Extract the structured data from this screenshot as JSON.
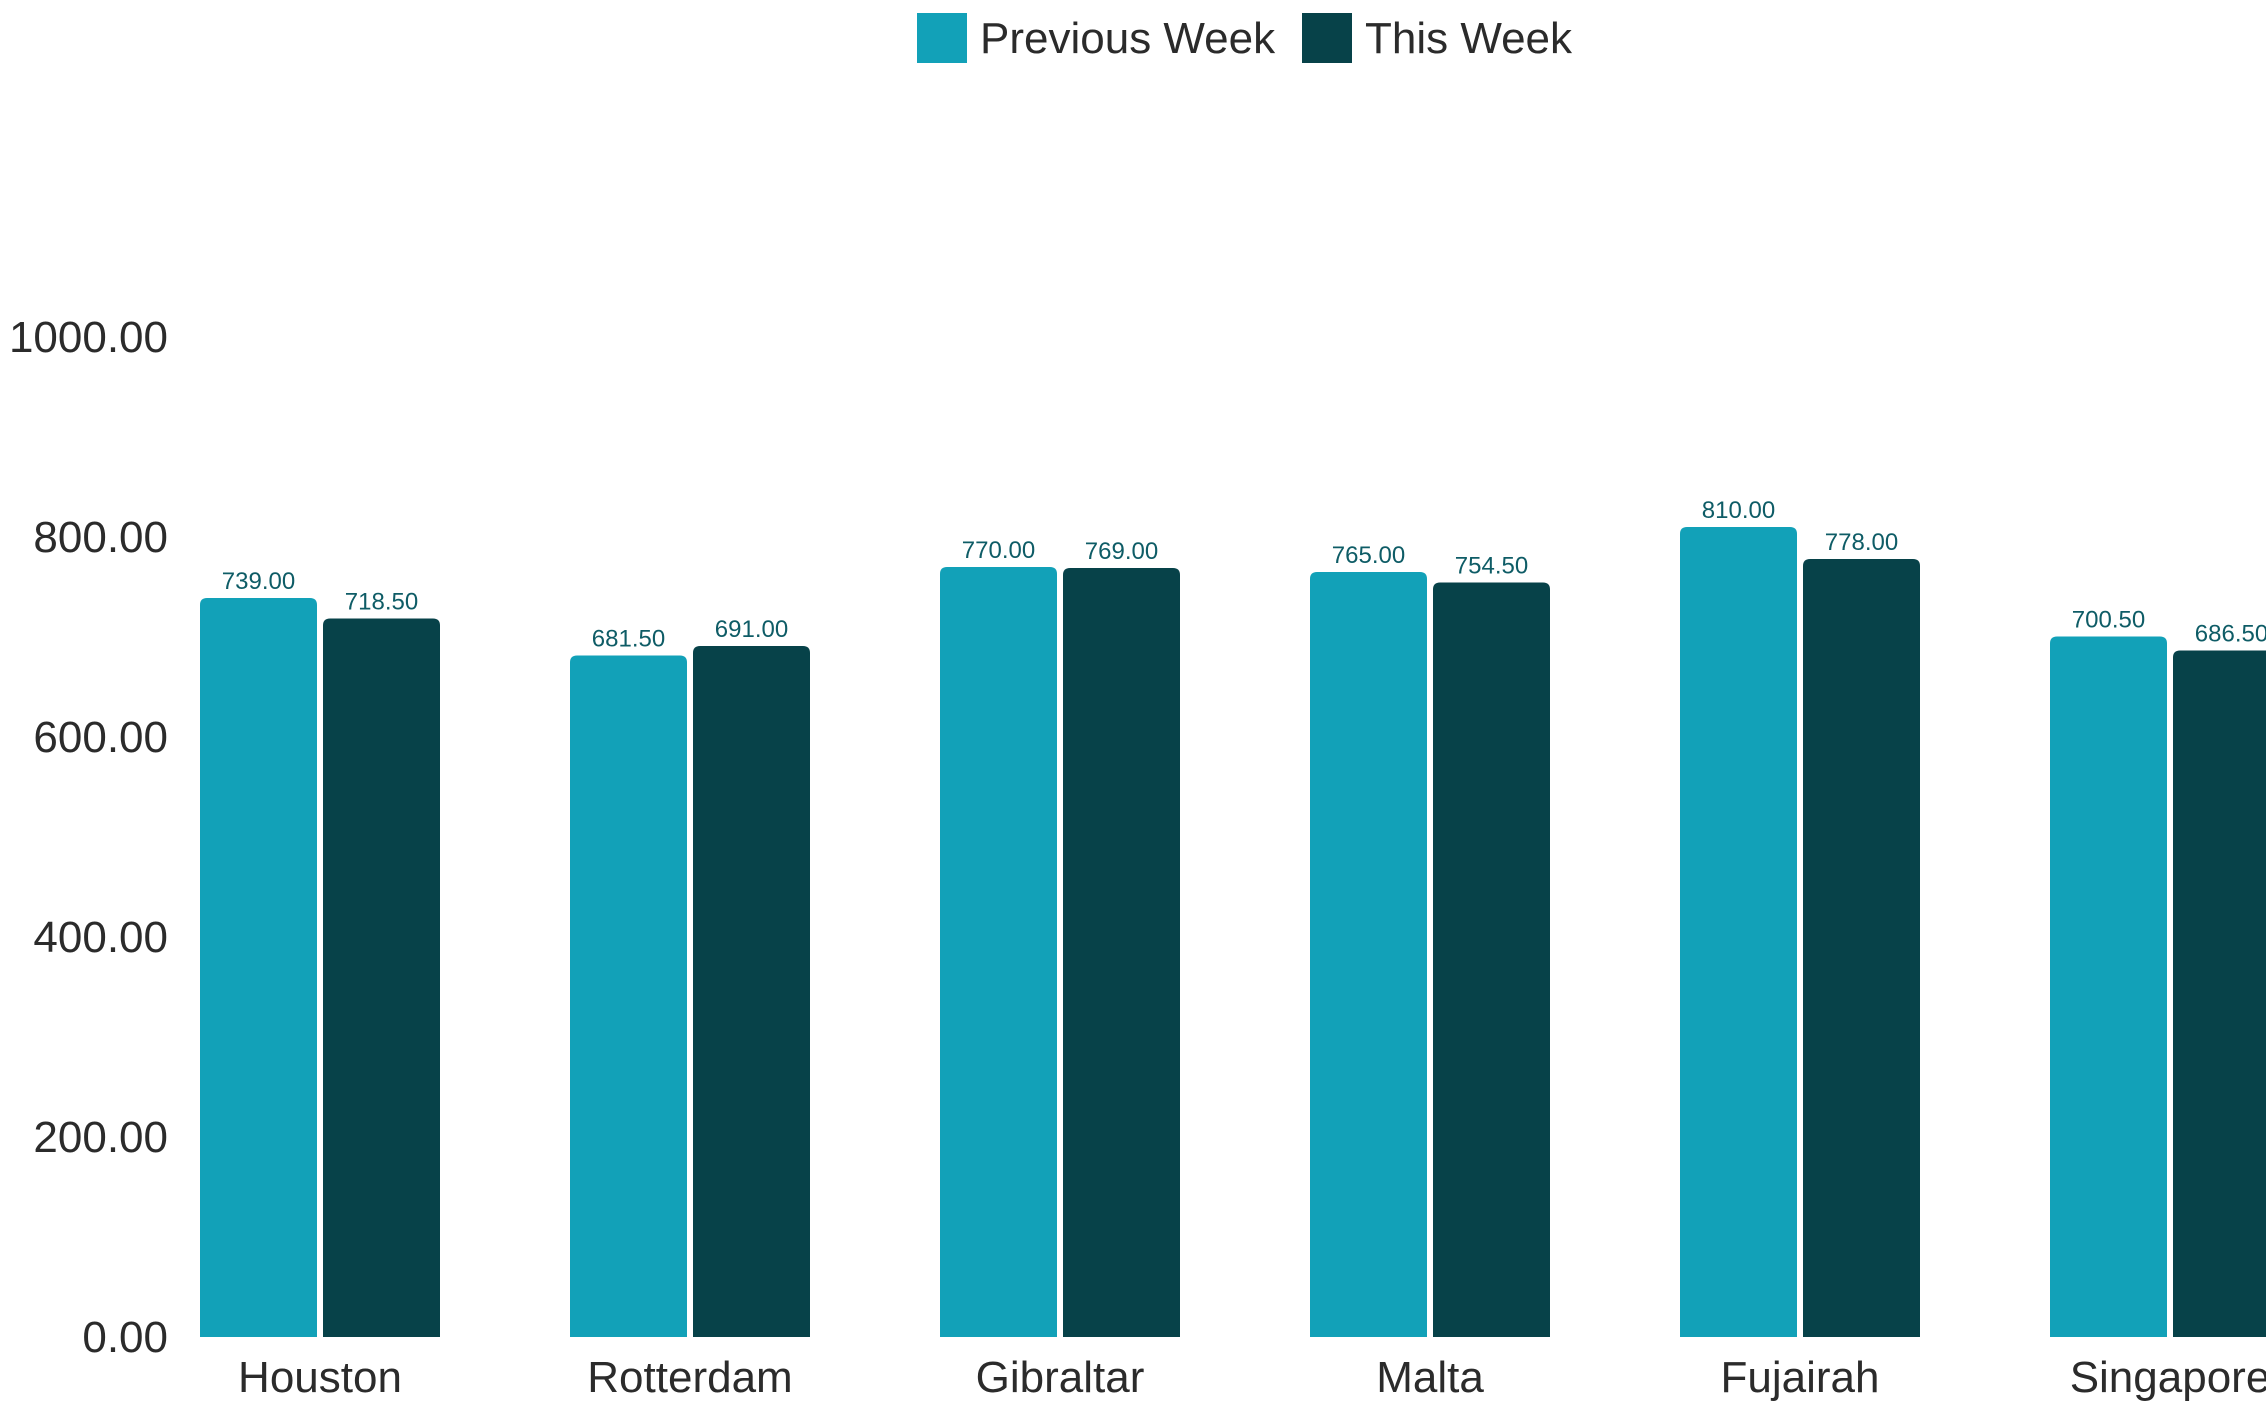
{
  "chart_data": {
    "type": "bar",
    "title": "",
    "xlabel": "",
    "ylabel": "",
    "categories": [
      "Houston",
      "Rotterdam",
      "Gibraltar",
      "Malta",
      "Fujairah",
      "Singapore"
    ],
    "series": [
      {
        "name": "Previous Week",
        "color": "#12a1b8",
        "values": [
          739.0,
          681.5,
          770.0,
          765.0,
          810.0,
          700.5
        ],
        "labels": [
          "739.00",
          "681.50",
          "770.00",
          "765.00",
          "810.00",
          "700.50"
        ]
      },
      {
        "name": "This Week",
        "color": "#074249",
        "values": [
          718.5,
          691.0,
          769.0,
          754.5,
          778.0,
          686.5
        ],
        "labels": [
          "718.50",
          "691.00",
          "769.00",
          "754.50",
          "778.00",
          "686.50"
        ]
      }
    ],
    "ylim": [
      0,
      1000
    ],
    "yticks": [
      "0.00",
      "200.00",
      "400.00",
      "600.00",
      "800.00",
      "1000.00"
    ],
    "grid": false,
    "legend_position": "top-center"
  }
}
